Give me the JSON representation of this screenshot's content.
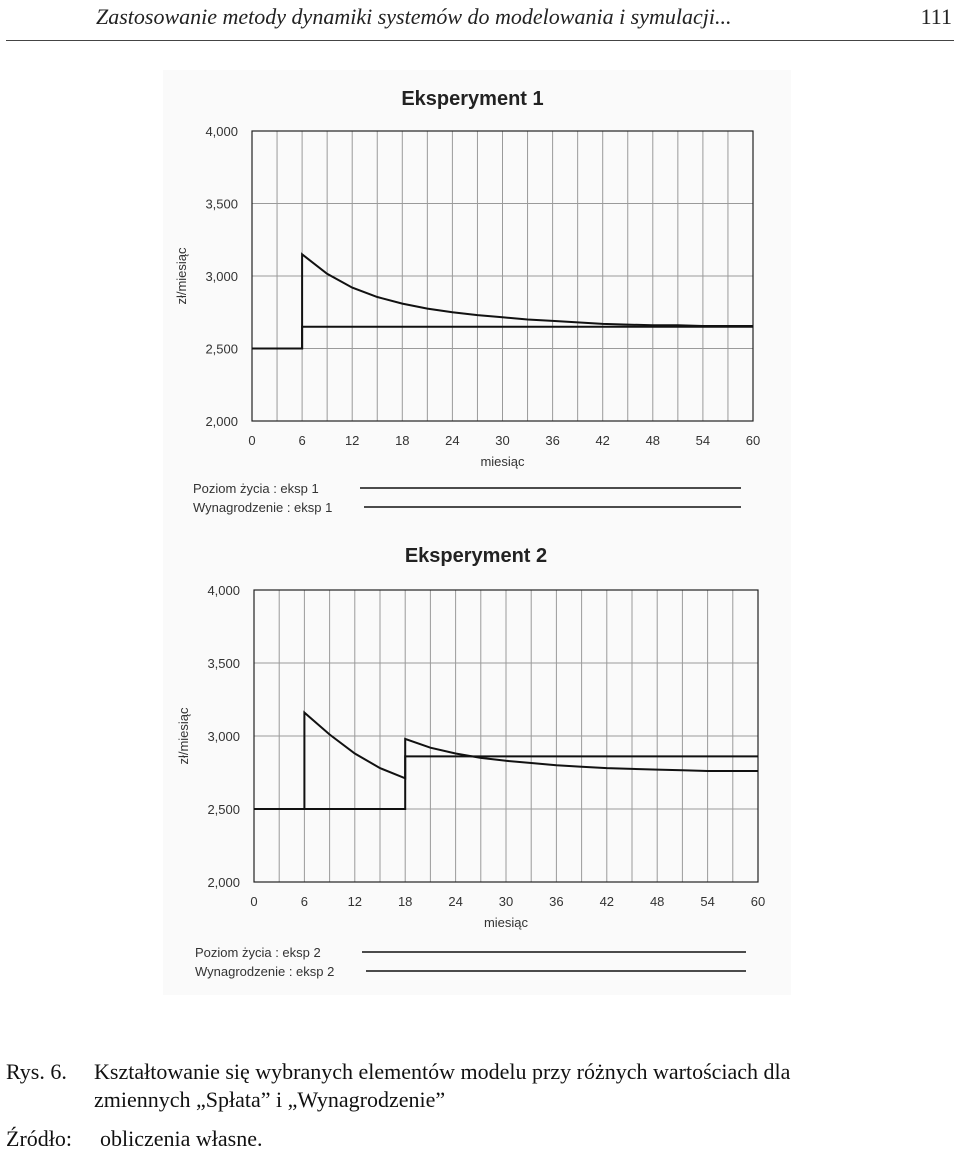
{
  "header": {
    "running_title": "Zastosowanie metody dynamiki systemów do modelowania i symulacji...",
    "page_number": "111"
  },
  "chart_data": [
    {
      "type": "line",
      "title": "Eksperyment 1",
      "xlabel": "miesiąc",
      "ylabel": "zł/miesiąc",
      "xlim": [
        0,
        60
      ],
      "ylim": [
        2000,
        4000
      ],
      "x_ticks": [
        "0",
        "6",
        "12",
        "18",
        "24",
        "30",
        "36",
        "42",
        "48",
        "54",
        "60"
      ],
      "y_ticks": [
        "4,000",
        "3,500",
        "3,000",
        "2,500",
        "2,000"
      ],
      "y_tick_values": [
        4000,
        3500,
        3000,
        2500,
        2000
      ],
      "grid": true,
      "series": [
        {
          "name": "Poziom życia : eksp 1",
          "x": [
            0,
            6,
            6,
            9,
            12,
            15,
            18,
            21,
            24,
            27,
            30,
            33,
            36,
            39,
            42,
            45,
            48,
            51,
            54,
            57,
            60
          ],
          "y": [
            2500,
            2500,
            3150,
            3015,
            2920,
            2855,
            2810,
            2775,
            2750,
            2730,
            2715,
            2700,
            2690,
            2680,
            2670,
            2665,
            2660,
            2660,
            2655,
            2655,
            2655
          ]
        },
        {
          "name": "Wynagrodzenie : eksp 1",
          "x": [
            0,
            6,
            6,
            60
          ],
          "y": [
            2500,
            2500,
            2650,
            2650
          ]
        }
      ]
    },
    {
      "type": "line",
      "title": "Eksperyment 2",
      "xlabel": "miesiąc",
      "ylabel": "zł/miesiąc",
      "xlim": [
        0,
        60
      ],
      "ylim": [
        2000,
        4000
      ],
      "x_ticks": [
        "0",
        "6",
        "12",
        "18",
        "24",
        "30",
        "36",
        "42",
        "48",
        "54",
        "60"
      ],
      "y_ticks": [
        "4,000",
        "3,500",
        "3,000",
        "2,500",
        "2,000"
      ],
      "y_tick_values": [
        4000,
        3500,
        3000,
        2500,
        2000
      ],
      "grid": true,
      "series": [
        {
          "name": "Poziom życia : eksp 2",
          "x": [
            0,
            6,
            6,
            9,
            12,
            15,
            18,
            18,
            21,
            24,
            27,
            30,
            33,
            36,
            39,
            42,
            45,
            48,
            51,
            54,
            57,
            60
          ],
          "y": [
            2500,
            2500,
            3160,
            3010,
            2880,
            2780,
            2710,
            2980,
            2920,
            2880,
            2850,
            2830,
            2815,
            2800,
            2790,
            2780,
            2775,
            2770,
            2765,
            2760,
            2760,
            2760
          ]
        },
        {
          "name": "Wynagrodzenie : eksp 2",
          "x": [
            0,
            6,
            6,
            18,
            18,
            60
          ],
          "y": [
            2500,
            2500,
            2500,
            2500,
            2860,
            2860
          ]
        }
      ]
    }
  ],
  "caption": {
    "label": "Rys. 6.",
    "text_line1": "Kształtowanie się wybranych elementów modelu przy różnych wartościach dla",
    "text_line2": "zmiennych „Spłata” i „Wynagrodzenie”"
  },
  "source": {
    "label": "Źródło:",
    "text": "obliczenia własne."
  }
}
